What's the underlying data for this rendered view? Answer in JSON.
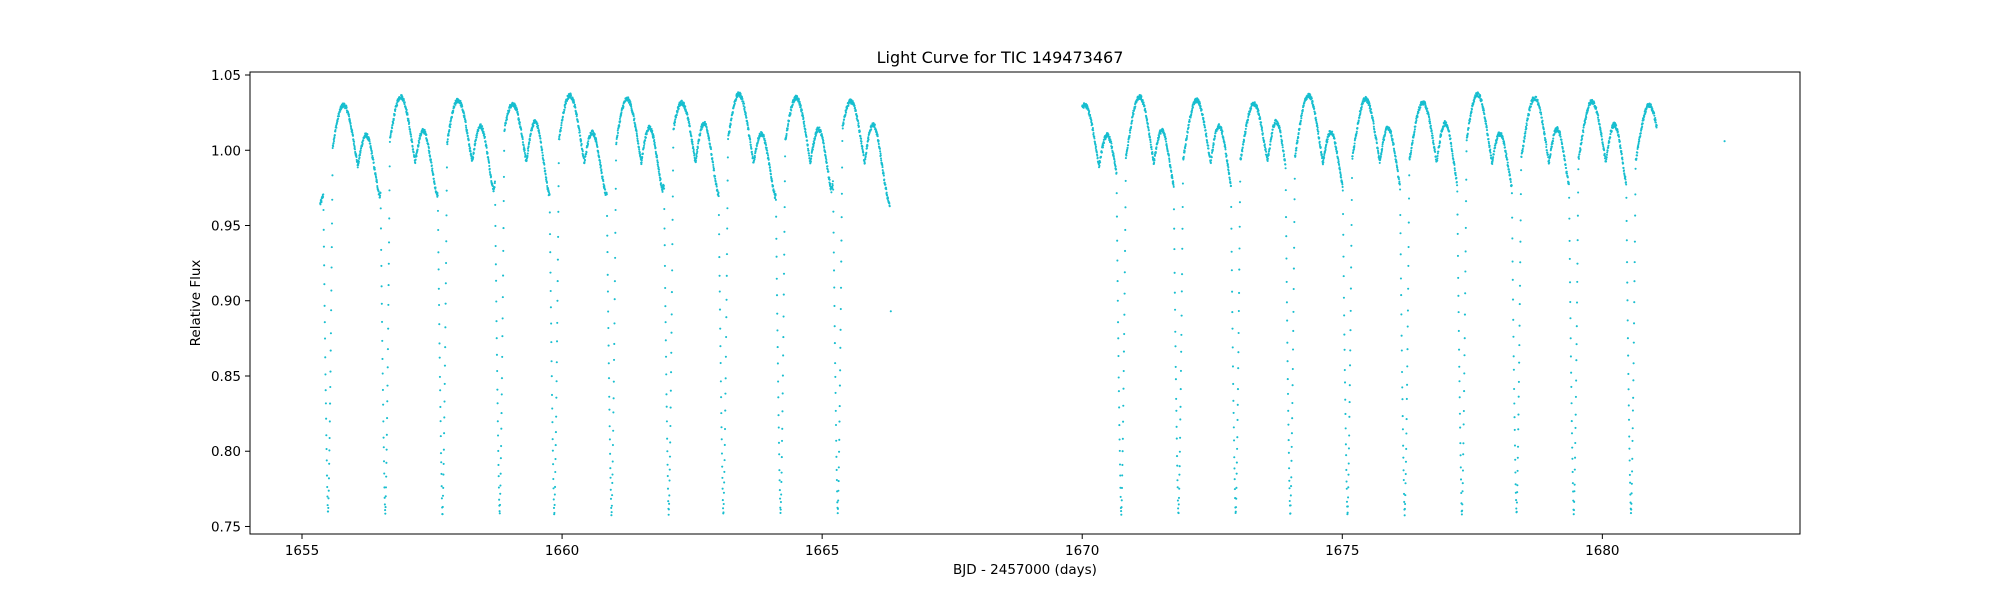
{
  "chart_data": {
    "type": "scatter",
    "title": "Light Curve for TIC 149473467",
    "xlabel": "BJD - 2457000 (days)",
    "ylabel": "Relative Flux",
    "xlim": [
      1654.0,
      1683.8
    ],
    "ylim": [
      0.745,
      1.052
    ],
    "xticks": [
      1655,
      1660,
      1665,
      1670,
      1675,
      1680
    ],
    "xtick_labels": [
      "1655",
      "1660",
      "1665",
      "1670",
      "1675",
      "1680"
    ],
    "yticks": [
      0.75,
      0.8,
      0.85,
      0.9,
      0.95,
      1.0,
      1.05
    ],
    "ytick_labels": [
      "0.75",
      "0.80",
      "0.85",
      "0.90",
      "0.95",
      "1.00",
      "1.05"
    ],
    "grid": false,
    "marker_color": "#17becf",
    "segments": [
      {
        "start": 1655.35,
        "end": 1666.3
      },
      {
        "start": 1670.0,
        "end": 1681.05
      }
    ],
    "primary_eclipses": [
      1655.5,
      1656.6,
      1657.7,
      1658.8,
      1659.85,
      1660.95,
      1662.05,
      1663.1,
      1664.2,
      1665.3,
      1670.75,
      1671.85,
      1672.95,
      1674.0,
      1675.1,
      1676.2,
      1677.3,
      1678.35,
      1679.45,
      1680.55
    ],
    "eclipse_min_flux": 0.758,
    "max_flux_peaks": [
      1655.8,
      1656.9,
      1658.0,
      1659.05,
      1660.15,
      1661.25,
      1662.3,
      1663.4,
      1664.5,
      1665.55,
      1670.05,
      1671.1,
      1672.2,
      1673.3,
      1674.35,
      1675.45,
      1676.55,
      1677.6,
      1678.7,
      1679.8,
      1680.9
    ],
    "peak_flux_range": [
      1.03,
      1.038
    ],
    "secondary_peak_flux_range": [
      1.01,
      1.02
    ],
    "inter_eclipse_min_flux": 0.955,
    "outlier_points": [
      {
        "x": 1682.35,
        "y": 1.006
      },
      {
        "x": 1666.32,
        "y": 0.893
      }
    ]
  }
}
